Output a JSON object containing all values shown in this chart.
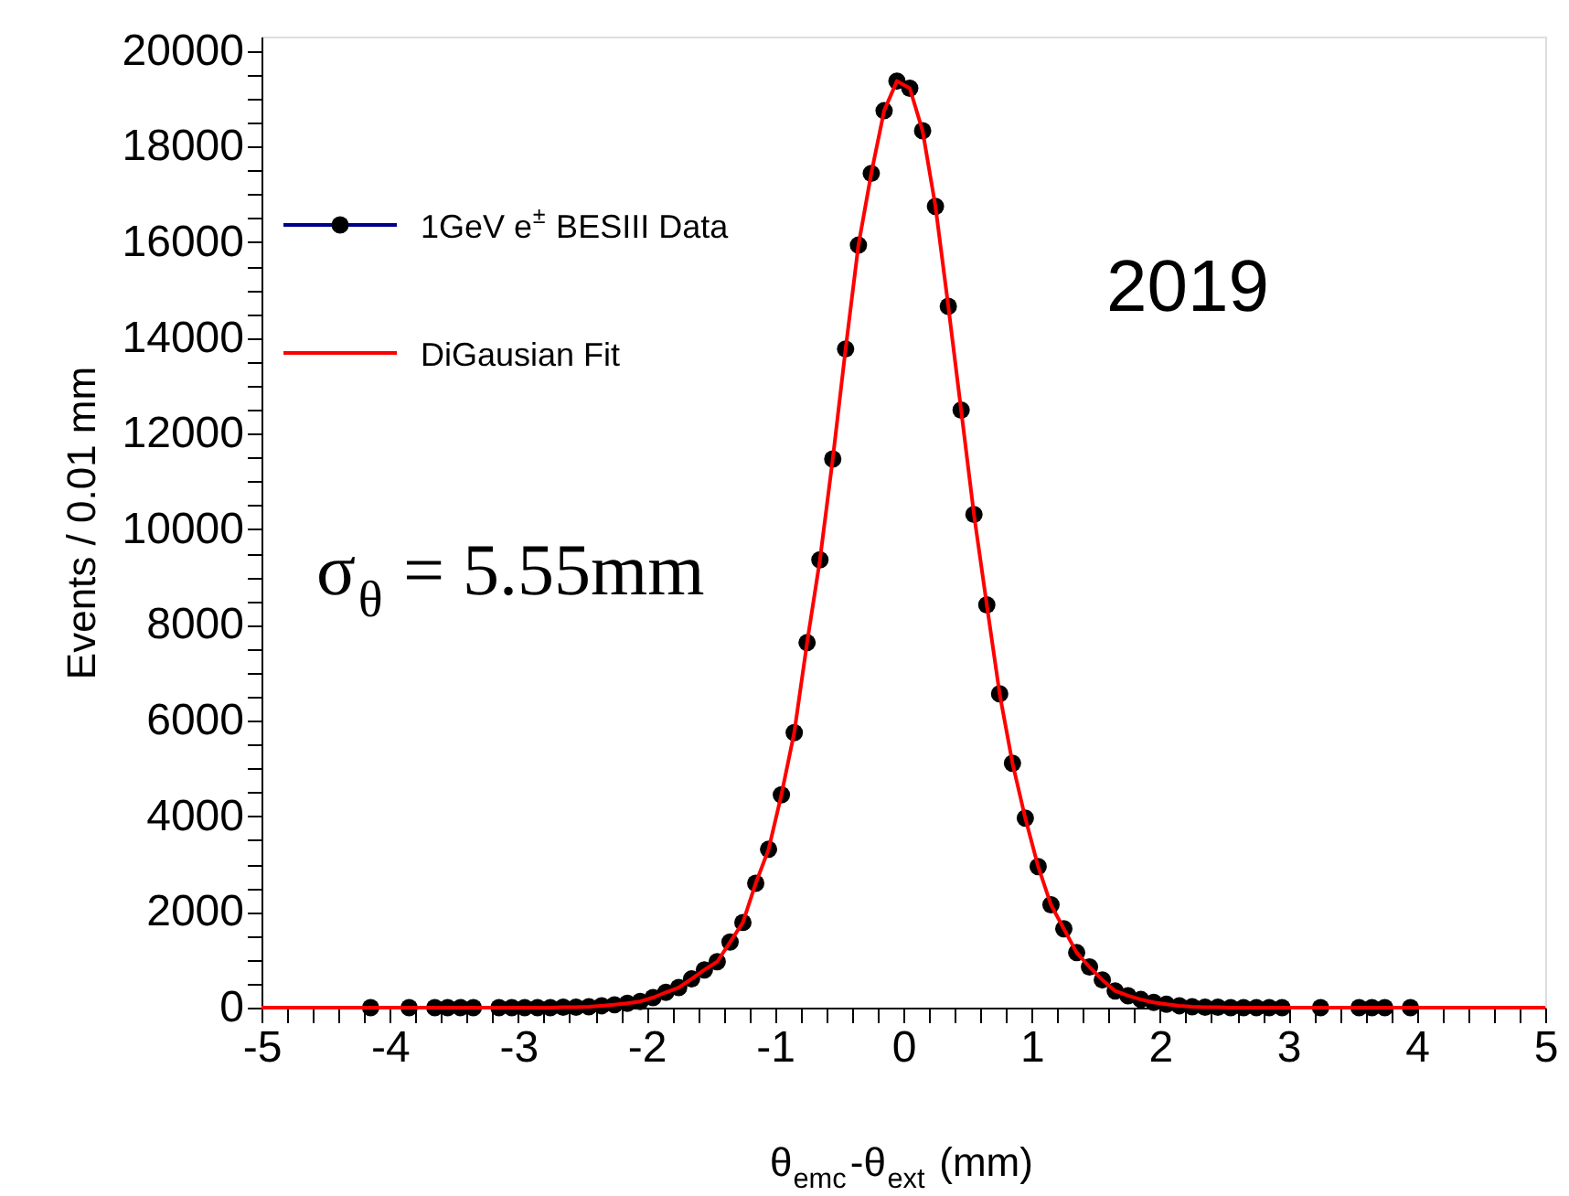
{
  "chart_data": {
    "type": "scatter",
    "xlabel": "θ$_{emc}$-θ$_{ext}$ (mm)",
    "ylabel": "Events / 0.01 mm",
    "annotations": [
      "2019",
      "σ$_{θ}$ = 5.55mm"
    ],
    "xlim": [
      -5,
      5
    ],
    "xticks": [
      -5,
      {
        "value": -4.8,
        "label": null
      },
      {
        "value": -4.6,
        "label": null
      },
      {
        "value": -4.4,
        "label": null
      },
      {
        "value": -4.2,
        "label": null
      },
      -4,
      {
        "value": -3.8,
        "label": null
      },
      {
        "value": -3.6,
        "label": null
      },
      {
        "value": -3.4,
        "label": null
      },
      {
        "value": -3.2,
        "label": null
      },
      -3,
      {
        "value": -2.8,
        "label": null
      },
      {
        "value": -2.6,
        "label": null
      },
      {
        "value": -2.4,
        "label": null
      },
      {
        "value": -2.2,
        "label": null
      },
      -2,
      {
        "value": -1.8,
        "label": null
      },
      {
        "value": -1.6,
        "label": null
      },
      {
        "value": -1.4,
        "label": null
      },
      {
        "value": -1.2,
        "label": null
      },
      -1,
      {
        "value": -0.8,
        "label": null
      },
      {
        "value": -0.6,
        "label": null
      },
      {
        "value": -0.4,
        "label": null
      },
      {
        "value": -0.2,
        "label": null
      },
      0,
      {
        "value": 0.2,
        "label": null
      },
      {
        "value": 0.4,
        "label": null
      },
      {
        "value": 0.6,
        "label": null
      },
      {
        "value": 0.8,
        "label": null
      },
      1,
      {
        "value": 1.2,
        "label": null
      },
      {
        "value": 1.4,
        "label": null
      },
      {
        "value": 1.6,
        "label": null
      },
      {
        "value": 1.8,
        "label": null
      },
      2,
      {
        "value": 2.2,
        "label": null
      },
      {
        "value": 2.4,
        "label": null
      },
      {
        "value": 2.6,
        "label": null
      },
      {
        "value": 2.8,
        "label": null
      },
      3,
      {
        "value": 3.2,
        "label": null
      },
      {
        "value": 3.4,
        "label": null
      },
      {
        "value": 3.6,
        "label": null
      },
      {
        "value": 3.8,
        "label": null
      },
      4,
      {
        "value": 4.2,
        "label": null
      },
      {
        "value": 4.4,
        "label": null
      },
      {
        "value": 4.6,
        "label": null
      },
      {
        "value": 4.8,
        "label": null
      },
      5
    ],
    "ylim": [
      0,
      20300
    ],
    "yticks": [
      0,
      {
        "value": 500,
        "label": null
      },
      {
        "value": 1000,
        "label": null
      },
      {
        "value": 1500,
        "label": null
      },
      2000,
      {
        "value": 2500,
        "label": null
      },
      {
        "value": 3000,
        "label": null
      },
      {
        "value": 3500,
        "label": null
      },
      4000,
      {
        "value": 4500,
        "label": null
      },
      {
        "value": 5000,
        "label": null
      },
      {
        "value": 5500,
        "label": null
      },
      6000,
      {
        "value": 6500,
        "label": null
      },
      {
        "value": 7000,
        "label": null
      },
      {
        "value": 7500,
        "label": null
      },
      8000,
      {
        "value": 8500,
        "label": null
      },
      {
        "value": 9000,
        "label": null
      },
      {
        "value": 9500,
        "label": null
      },
      10000,
      {
        "value": 10500,
        "label": null
      },
      {
        "value": 11000,
        "label": null
      },
      {
        "value": 11500,
        "label": null
      },
      12000,
      {
        "value": 12500,
        "label": null
      },
      {
        "value": 13000,
        "label": null
      },
      {
        "value": 13500,
        "label": null
      },
      14000,
      {
        "value": 14500,
        "label": null
      },
      {
        "value": 15000,
        "label": null
      },
      {
        "value": 15500,
        "label": null
      },
      16000,
      {
        "value": 16500,
        "label": null
      },
      {
        "value": 17000,
        "label": null
      },
      {
        "value": 17500,
        "label": null
      },
      18000,
      {
        "value": 18500,
        "label": null
      },
      {
        "value": 19000,
        "label": null
      },
      {
        "value": 19500,
        "label": null
      },
      20000
    ],
    "grid": false,
    "legend": "top left",
    "marker": "circle",
    "series": [
      {
        "name": "1GeV e$^{±}$ BESIII Data",
        "color": "#000000",
        "x": [
          -4.15,
          -3.85,
          -3.65,
          -3.55,
          -3.45,
          -3.35,
          -3.15,
          -3.05,
          -2.95,
          -2.85,
          -2.75,
          -2.65,
          -2.55,
          -2.45,
          -2.35,
          -2.25,
          -2.15,
          -2.05,
          -1.95,
          -1.85,
          -1.75,
          -1.65,
          -1.55,
          -1.45,
          -1.35,
          -1.25,
          -1.15,
          -1.05,
          -0.95,
          -0.85,
          -0.75,
          -0.65,
          -0.55,
          -0.45,
          -0.35,
          -0.25,
          -0.15,
          -0.05,
          0.05,
          0.15,
          0.25,
          0.35,
          0.45,
          0.55,
          0.65,
          0.75,
          0.85,
          0.95,
          1.05,
          1.15,
          1.25,
          1.35,
          1.45,
          1.55,
          1.65,
          1.75,
          1.85,
          1.95,
          2.05,
          2.15,
          2.25,
          2.35,
          2.45,
          2.55,
          2.65,
          2.75,
          2.85,
          2.95,
          3.25,
          3.55,
          3.65,
          3.75,
          3.95
        ],
        "values": [
          0,
          0,
          0,
          0,
          0,
          0,
          0,
          0,
          0,
          0,
          0,
          10,
          10,
          20,
          40,
          60,
          90,
          130,
          210,
          320,
          420,
          600,
          790,
          960,
          1370,
          1780,
          2600,
          3310,
          4450,
          5750,
          7630,
          9360,
          11470,
          13770,
          15940,
          17440,
          18750,
          19370,
          19220,
          18330,
          16750,
          14660,
          12490,
          10310,
          8420,
          6560,
          5110,
          3960,
          2950,
          2150,
          1650,
          1150,
          850,
          580,
          350,
          250,
          170,
          110,
          70,
          40,
          20,
          10,
          10,
          0,
          0,
          0,
          0,
          0,
          0,
          0,
          0,
          0,
          0
        ]
      },
      {
        "name": "DiGausian Fit",
        "type": "line",
        "color": "#ff0000",
        "marker": "none",
        "line_style": "solid",
        "x": [
          -5,
          -2.75,
          -2.65,
          -2.55,
          -2.45,
          -2.35,
          -2.25,
          -2.15,
          -2.05,
          -1.95,
          -1.85,
          -1.75,
          -1.65,
          -1.55,
          -1.45,
          -1.35,
          -1.25,
          -1.15,
          -1.05,
          -0.95,
          -0.85,
          -0.75,
          -0.65,
          -0.55,
          -0.45,
          -0.35,
          -0.25,
          -0.15,
          -0.05,
          0.05,
          0.15,
          0.25,
          0.35,
          0.45,
          0.55,
          0.65,
          0.75,
          0.85,
          0.95,
          1.05,
          1.15,
          1.25,
          1.35,
          1.45,
          1.55,
          1.65,
          1.75,
          1.85,
          1.95,
          2.05,
          2.15,
          2.25,
          2.35,
          2.45,
          2.55,
          5
        ],
        "values": [
          0,
          0,
          10,
          10,
          20,
          40,
          60,
          90,
          130,
          210,
          320,
          420,
          600,
          790,
          960,
          1370,
          1780,
          2600,
          3310,
          4450,
          5750,
          7630,
          9360,
          11470,
          13770,
          15940,
          17440,
          18750,
          19370,
          19220,
          18330,
          16750,
          14660,
          12490,
          10310,
          8420,
          6560,
          5110,
          3960,
          2950,
          2150,
          1650,
          1150,
          850,
          580,
          350,
          250,
          170,
          110,
          70,
          40,
          20,
          10,
          10,
          0,
          0
        ]
      }
    ]
  }
}
